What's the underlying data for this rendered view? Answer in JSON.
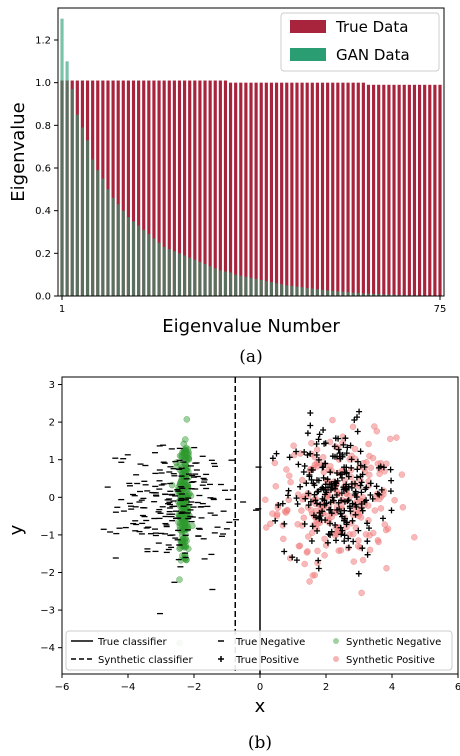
{
  "colors": {
    "true_bar": "#a8243d",
    "gan_bar": "#2a9e72",
    "overlap": "#5e7c59",
    "green_points": "#2f9a2f",
    "red_points": "#f08080",
    "black": "#000000"
  },
  "chart_data": [
    {
      "type": "bar",
      "caption": "(a)",
      "xlabel": "Eigenvalue Number",
      "ylabel": "Eigenvalue",
      "xlim": [
        1,
        75
      ],
      "ylim": [
        0,
        1.35
      ],
      "x_ticks": [
        "1",
        "75"
      ],
      "y_ticks": [
        "0.0",
        "0.2",
        "0.4",
        "0.6",
        "0.8",
        "1.0",
        "1.2"
      ],
      "legend_position": "top-right",
      "series": [
        {
          "name": "True Data",
          "values": [
            1.01,
            1.01,
            1.01,
            1.01,
            1.01,
            1.01,
            1.01,
            1.01,
            1.01,
            1.01,
            1.01,
            1.01,
            1.01,
            1.01,
            1.01,
            1.01,
            1.01,
            1.01,
            1.01,
            1.01,
            1.01,
            1.01,
            1.01,
            1.01,
            1.01,
            1.01,
            1.01,
            1.01,
            1.01,
            1.01,
            1.01,
            1.01,
            1.01,
            1.0,
            1.0,
            1.0,
            1.0,
            1.0,
            1.0,
            1.0,
            1.0,
            1.0,
            1.0,
            1.0,
            1.0,
            1.0,
            1.0,
            1.0,
            1.0,
            1.0,
            1.0,
            1.0,
            1.0,
            1.0,
            1.0,
            1.0,
            1.0,
            1.0,
            1.0,
            1.0,
            0.99,
            0.99,
            0.99,
            0.99,
            0.99,
            0.99,
            0.99,
            0.99,
            0.99,
            0.99,
            0.99,
            0.99,
            0.99,
            0.99,
            0.99
          ]
        },
        {
          "name": "GAN Data",
          "values": [
            1.3,
            1.1,
            0.97,
            0.85,
            0.79,
            0.73,
            0.64,
            0.59,
            0.55,
            0.5,
            0.46,
            0.43,
            0.4,
            0.37,
            0.35,
            0.33,
            0.31,
            0.29,
            0.27,
            0.25,
            0.23,
            0.22,
            0.21,
            0.2,
            0.19,
            0.18,
            0.17,
            0.16,
            0.15,
            0.14,
            0.13,
            0.12,
            0.115,
            0.11,
            0.1,
            0.095,
            0.09,
            0.085,
            0.08,
            0.075,
            0.07,
            0.065,
            0.06,
            0.055,
            0.05,
            0.047,
            0.044,
            0.041,
            0.038,
            0.035,
            0.032,
            0.029,
            0.026,
            0.024,
            0.022,
            0.02,
            0.018,
            0.016,
            0.014,
            0.012,
            0.011,
            0.01,
            0.009,
            0.008,
            0.007,
            0.006,
            0.005,
            0.004,
            0.004,
            0.003,
            0.003,
            0.002,
            0.002,
            0.001,
            0.001
          ]
        }
      ]
    },
    {
      "type": "scatter",
      "caption": "(b)",
      "xlabel": "x",
      "ylabel": "y",
      "xlim": [
        -6,
        6
      ],
      "ylim": [
        -4.7,
        3.2
      ],
      "x_ticks": [
        "−6",
        "−4",
        "−2",
        "0",
        "2",
        "4",
        "6"
      ],
      "y_ticks": [
        "−4",
        "−3",
        "−2",
        "−1",
        "0",
        "1",
        "2",
        "3"
      ],
      "legend_position": "bottom",
      "lines": [
        {
          "name": "True classifier",
          "x": 0.0,
          "style": "solid"
        },
        {
          "name": "Synthetic classifier",
          "x": -0.75,
          "style": "dashed"
        }
      ],
      "series": [
        {
          "name": "True Negative",
          "marker": "minus",
          "center": [
            -2.6,
            -0.2
          ],
          "spread": [
            0.85,
            0.75
          ],
          "count": 230
        },
        {
          "name": "True Positive",
          "marker": "plus",
          "center": [
            2.3,
            0.2
          ],
          "spread": [
            0.75,
            0.85
          ],
          "count": 230
        },
        {
          "name": "Synthetic Negative",
          "marker": "circle",
          "center": [
            -2.3,
            -0.1
          ],
          "spread": [
            0.09,
            0.9
          ],
          "count": 230
        },
        {
          "name": "Synthetic Positive",
          "marker": "circle",
          "center": [
            2.3,
            -0.1
          ],
          "spread": [
            0.85,
            0.85
          ],
          "count": 230
        }
      ]
    }
  ]
}
